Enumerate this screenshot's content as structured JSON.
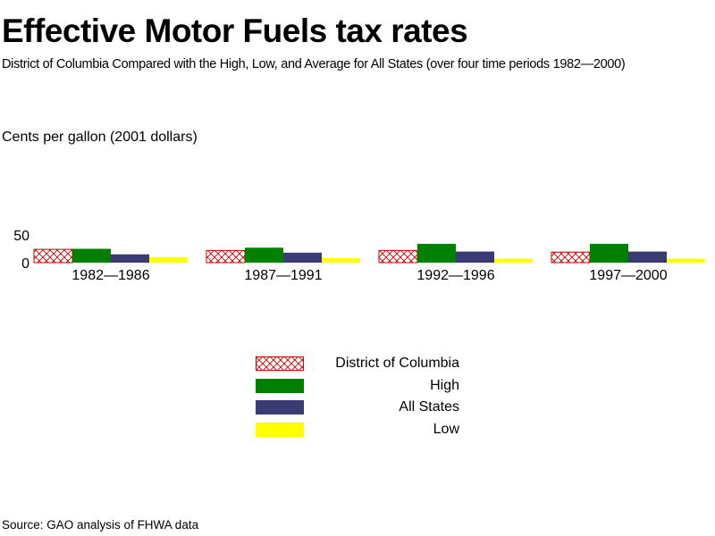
{
  "title": "Effective Motor Fuels tax rates",
  "subtitle": "District of Columbia Compared with the High, Low, and Average for All States (over four time periods 1982—2000)",
  "source": "Source: GAO analysis of FHWA data",
  "colors": {
    "dc": "#cc0000",
    "high": "#008000",
    "all_states": "#3a3a74",
    "low": "#ffff00"
  },
  "chart_data": {
    "type": "bar",
    "ylabel": "Cents per gallon (2001 dollars)",
    "xlabel": "",
    "ylim": [
      0,
      50
    ],
    "yticks": [
      "0",
      "50"
    ],
    "grid": false,
    "legend_placement": "bottom-center",
    "categories": [
      "1982—1986",
      "1987—1991",
      "1992—1996",
      "1997—2000"
    ],
    "series": [
      {
        "name": "District of Columbia",
        "values": [
          24,
          22,
          22,
          19
        ],
        "pattern": "crosshatch",
        "color": "#cc0000"
      },
      {
        "name": "High",
        "values": [
          25,
          27,
          34,
          34
        ],
        "color": "#008000"
      },
      {
        "name": "All States",
        "values": [
          15,
          18,
          20,
          20
        ],
        "color": "#3a3a74"
      },
      {
        "name": "Low",
        "values": [
          10,
          8,
          7,
          7
        ],
        "color": "#ffff00"
      }
    ]
  }
}
